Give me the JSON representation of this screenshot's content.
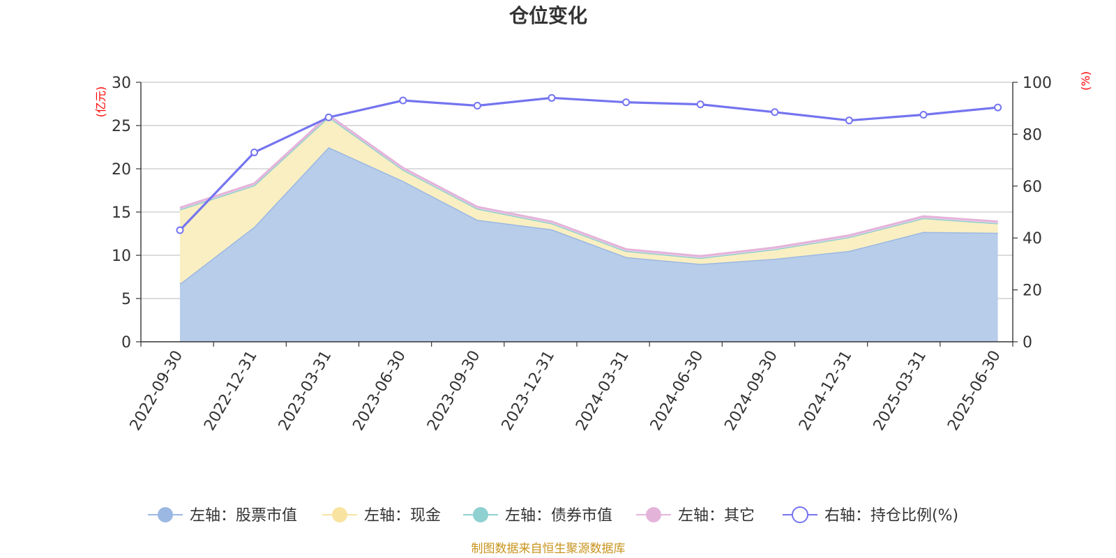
{
  "chart_data": {
    "type": "area",
    "title": "仓位变化",
    "categories": [
      "2022-09-30",
      "2022-12-31",
      "2023-03-31",
      "2023-06-30",
      "2023-09-30",
      "2023-12-31",
      "2024-03-31",
      "2024-06-30",
      "2024-09-30",
      "2024-12-31",
      "2025-03-31",
      "2025-06-30"
    ],
    "left_axis": {
      "unit": "(亿元)",
      "ylim": [
        0,
        30
      ],
      "ticks": [
        0,
        5,
        10,
        15,
        20,
        25,
        30
      ]
    },
    "right_axis": {
      "unit": "(%)",
      "ylim": [
        0,
        100
      ],
      "ticks": [
        0,
        20,
        40,
        60,
        80,
        100
      ]
    },
    "grid": true,
    "stacked": true,
    "legend_position": "bottom",
    "series": [
      {
        "name": "左轴：股票市值",
        "axis": "left",
        "kind": "area",
        "color": "#9bb8e2",
        "fill": "#b8cdea",
        "values": [
          6.7,
          13.3,
          22.5,
          18.6,
          14.1,
          13.0,
          9.8,
          9.0,
          9.6,
          10.5,
          12.7,
          12.6
        ]
      },
      {
        "name": "左轴：现金",
        "axis": "left",
        "kind": "area",
        "color": "#f8e3a0",
        "fill": "#faefc2",
        "values": [
          8.6,
          4.8,
          3.5,
          1.3,
          1.3,
          0.7,
          0.7,
          0.7,
          1.1,
          1.6,
          1.6,
          1.1
        ]
      },
      {
        "name": "左轴：债券市值",
        "axis": "left",
        "kind": "area",
        "color": "#8fd0d0",
        "fill": "#b6e1e1",
        "values": [
          0,
          0,
          0,
          0,
          0,
          0,
          0,
          0,
          0,
          0,
          0,
          0
        ]
      },
      {
        "name": "左轴：其它",
        "axis": "left",
        "kind": "area",
        "color": "#e4b3d9",
        "fill": "#f0d3ea",
        "values": [
          0.2,
          0.2,
          0.2,
          0.2,
          0.2,
          0.2,
          0.2,
          0.2,
          0.2,
          0.2,
          0.2,
          0.2
        ]
      },
      {
        "name": "右轴：持仓比例(%)",
        "axis": "right",
        "kind": "line",
        "color": "#7474f0",
        "values": [
          43,
          73,
          86.5,
          93,
          91,
          94,
          92.3,
          91.5,
          88.5,
          85.3,
          87.5,
          90.3
        ]
      }
    ],
    "source_note": "制图数据来自恒生聚源数据库"
  }
}
